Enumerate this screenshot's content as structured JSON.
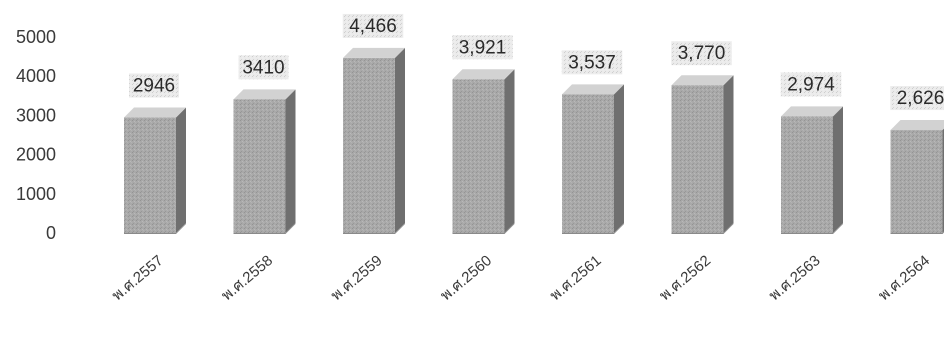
{
  "chart_data": {
    "type": "bar",
    "style": "3d-column",
    "categories": [
      "พ.ศ.2557",
      "พ.ศ.2558",
      "พ.ศ.2559",
      "พ.ศ.2560",
      "พ.ศ.2561",
      "พ.ศ.2562",
      "พ.ศ.2563",
      "พ.ศ.2564"
    ],
    "values": [
      2946,
      3410,
      4466,
      3921,
      3537,
      3770,
      2974,
      2626
    ],
    "data_labels": [
      "2946",
      "3410",
      "4,466",
      "3,921",
      "3,537",
      "3,770",
      "2,974",
      "2,626"
    ],
    "yticks": [
      0,
      1000,
      2000,
      3000,
      4000,
      5000
    ],
    "ytick_labels": [
      "0",
      "1000",
      "2000",
      "3000",
      "4000",
      "5000"
    ],
    "ylim": [
      0,
      5000
    ],
    "title": "",
    "xlabel": "",
    "ylabel": "",
    "grid": false,
    "legend": "none",
    "colors": {
      "bar_front": "#a9a9a9",
      "bar_side": "#6f6f6f",
      "bar_top": "#d2d2d2",
      "label_bg": "#e8e8e8"
    }
  }
}
